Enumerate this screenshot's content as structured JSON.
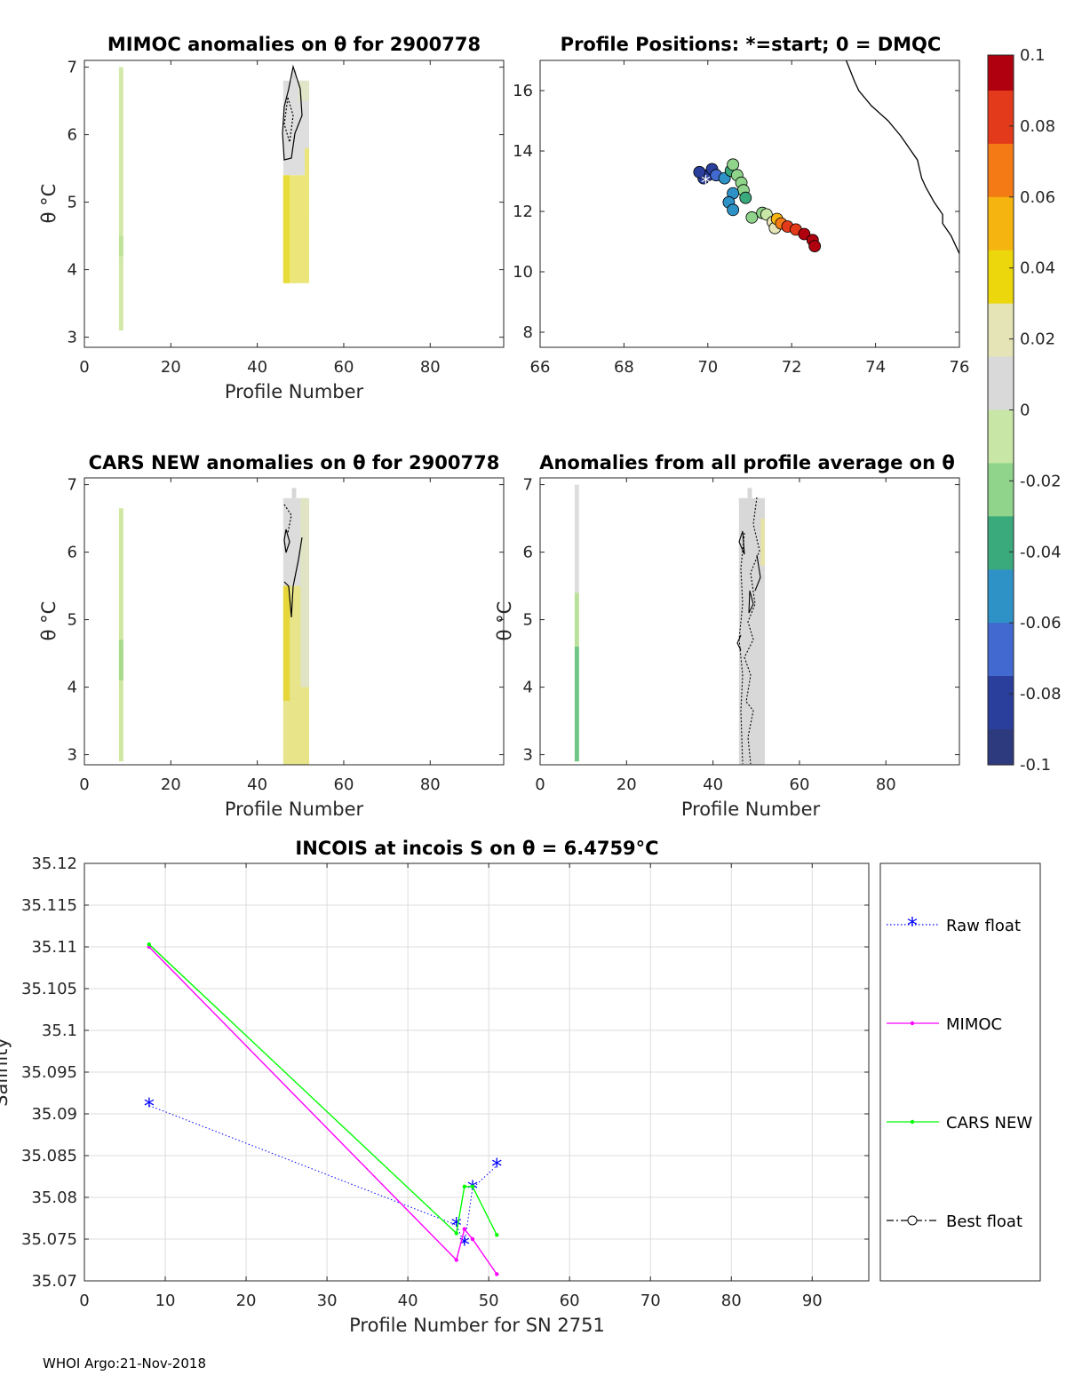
{
  "footer": "WHOI Argo:21-Nov-2018",
  "colorbar": {
    "ticks": [
      "0.1",
      "0.08",
      "0.06",
      "0.04",
      "0.02",
      "0",
      "-0.02",
      "-0.04",
      "-0.06",
      "-0.08",
      "-0.1"
    ],
    "stops": [
      "#b0000f",
      "#e23a1a",
      "#f47a16",
      "#f6b410",
      "#ecd70c",
      "#e4e4b6",
      "#d9d9d9",
      "#c8e6a6",
      "#8fd48a",
      "#3aa97c",
      "#2f92c6",
      "#4169d0",
      "#2a3e9c",
      "#2d3a7e"
    ]
  },
  "chart_data": [
    {
      "type": "heatmap",
      "title": "MIMOC anomalies on θ  for 2900778",
      "xlabel": "Profile Number",
      "ylabel": "θ °C",
      "xlim": [
        0,
        97
      ],
      "ylim": [
        2.85,
        7.1
      ],
      "xticks": [
        "0",
        "20",
        "40",
        "60",
        "80"
      ],
      "xtick_values": [
        0,
        20,
        40,
        60,
        80
      ],
      "yticks": [
        "3",
        "4",
        "5",
        "6",
        "7"
      ],
      "ytick_values": [
        3,
        4,
        5,
        6,
        7
      ],
      "cells": [
        {
          "x0": 8,
          "x1": 9,
          "y0": 3.1,
          "y1": 7.0,
          "color": "#d2e8a8"
        },
        {
          "x0": 8,
          "x1": 9,
          "y0": 4.2,
          "y1": 4.5,
          "color": "#bfe29a"
        },
        {
          "x0": 46,
          "x1": 52,
          "y0": 3.8,
          "y1": 5.4,
          "color": "#ece67a"
        },
        {
          "x0": 46,
          "x1": 47.5,
          "y0": 3.8,
          "y1": 5.4,
          "color": "#e8dc3a"
        },
        {
          "x0": 46,
          "x1": 52,
          "y0": 5.4,
          "y1": 6.8,
          "color": "#dedede"
        },
        {
          "x0": 49.5,
          "x1": 52,
          "y0": 6.5,
          "y1": 6.8,
          "color": "#e2e6c8"
        },
        {
          "x0": 48,
          "x1": 49,
          "y0": 6.8,
          "y1": 6.95,
          "color": "#d6d6d6"
        },
        {
          "x0": 51,
          "x1": 52,
          "y0": 4.8,
          "y1": 5.8,
          "color": "#ece67a"
        }
      ]
    },
    {
      "type": "scatter",
      "title": "Profile Positions: *=start; 0 = DMQC",
      "xlim": [
        66,
        76
      ],
      "ylim": [
        7.5,
        17
      ],
      "xticks": [
        "66",
        "68",
        "70",
        "72",
        "74",
        "76"
      ],
      "xtick_values": [
        66,
        68,
        70,
        72,
        74,
        76
      ],
      "yticks": [
        "8",
        "10",
        "12",
        "14",
        "16"
      ],
      "ytick_values": [
        8,
        10,
        12,
        14,
        16
      ],
      "coast_x": [
        73.3,
        73.5,
        73.6,
        73.9,
        74.3,
        74.6,
        74.7,
        75.0,
        75.1,
        75.2,
        75.4,
        75.6,
        75.6,
        75.8,
        76.0
      ],
      "coast_y": [
        17.0,
        16.3,
        16.0,
        15.5,
        15.0,
        14.5,
        14.3,
        13.7,
        13.1,
        12.8,
        12.3,
        11.9,
        11.6,
        11.2,
        10.6
      ],
      "start": [
        69.95,
        13.05
      ],
      "points": [
        {
          "x": 69.9,
          "y": 13.1,
          "v": -0.09
        },
        {
          "x": 70.0,
          "y": 13.2,
          "v": -0.09
        },
        {
          "x": 69.8,
          "y": 13.3,
          "v": -0.08
        },
        {
          "x": 70.1,
          "y": 13.4,
          "v": -0.08
        },
        {
          "x": 70.2,
          "y": 13.2,
          "v": -0.07
        },
        {
          "x": 70.4,
          "y": 13.1,
          "v": -0.06
        },
        {
          "x": 70.55,
          "y": 13.35,
          "v": -0.04
        },
        {
          "x": 70.6,
          "y": 13.55,
          "v": -0.03
        },
        {
          "x": 70.7,
          "y": 13.2,
          "v": -0.02
        },
        {
          "x": 70.8,
          "y": 12.95,
          "v": -0.02
        },
        {
          "x": 70.85,
          "y": 12.7,
          "v": -0.03
        },
        {
          "x": 70.6,
          "y": 12.6,
          "v": -0.05
        },
        {
          "x": 70.5,
          "y": 12.3,
          "v": -0.06
        },
        {
          "x": 70.6,
          "y": 12.05,
          "v": -0.06
        },
        {
          "x": 70.9,
          "y": 12.45,
          "v": -0.04
        },
        {
          "x": 71.05,
          "y": 11.8,
          "v": -0.03
        },
        {
          "x": 71.3,
          "y": 11.95,
          "v": -0.02
        },
        {
          "x": 71.4,
          "y": 11.9,
          "v": 0.0
        },
        {
          "x": 71.55,
          "y": 11.65,
          "v": 0.02
        },
        {
          "x": 71.6,
          "y": 11.45,
          "v": 0.03
        },
        {
          "x": 71.65,
          "y": 11.75,
          "v": 0.05
        },
        {
          "x": 71.75,
          "y": 11.6,
          "v": 0.07
        },
        {
          "x": 71.9,
          "y": 11.5,
          "v": 0.08
        },
        {
          "x": 72.1,
          "y": 11.4,
          "v": 0.09
        },
        {
          "x": 72.3,
          "y": 11.25,
          "v": 0.1
        },
        {
          "x": 72.5,
          "y": 11.05,
          "v": 0.1
        },
        {
          "x": 72.55,
          "y": 10.85,
          "v": 0.1
        }
      ]
    },
    {
      "type": "heatmap",
      "title": "CARS NEW anomalies on θ for 2900778",
      "xlabel": "Profile Number",
      "ylabel": "θ °C",
      "xlim": [
        0,
        97
      ],
      "ylim": [
        2.85,
        7.1
      ],
      "xticks": [
        "0",
        "20",
        "40",
        "60",
        "80"
      ],
      "xtick_values": [
        0,
        20,
        40,
        60,
        80
      ],
      "yticks": [
        "3",
        "4",
        "5",
        "6",
        "7"
      ],
      "ytick_values": [
        3,
        4,
        5,
        6,
        7
      ],
      "cells": [
        {
          "x0": 8,
          "x1": 9,
          "y0": 2.9,
          "y1": 6.65,
          "color": "#cfe7a2"
        },
        {
          "x0": 8,
          "x1": 9,
          "y0": 4.1,
          "y1": 4.7,
          "color": "#a6da8c"
        },
        {
          "x0": 46,
          "x1": 52,
          "y0": 2.85,
          "y1": 5.5,
          "color": "#e8e48a"
        },
        {
          "x0": 46,
          "x1": 47.5,
          "y0": 3.8,
          "y1": 5.5,
          "color": "#e6d63a"
        },
        {
          "x0": 46,
          "x1": 52,
          "y0": 5.5,
          "y1": 6.8,
          "color": "#dcdcdc"
        },
        {
          "x0": 50,
          "x1": 52,
          "y0": 4.0,
          "y1": 6.8,
          "color": "#e0e4c4"
        },
        {
          "x0": 48,
          "x1": 49,
          "y0": 6.8,
          "y1": 6.95,
          "color": "#d6d6d6"
        }
      ]
    },
    {
      "type": "heatmap",
      "title": "Anomalies from all profile average on θ",
      "xlabel": "Profile Number",
      "ylabel": "θ °C",
      "xlim": [
        0,
        97
      ],
      "ylim": [
        2.85,
        7.1
      ],
      "xticks": [
        "0",
        "20",
        "40",
        "60",
        "80"
      ],
      "xtick_values": [
        0,
        20,
        40,
        60,
        80
      ],
      "yticks": [
        "3",
        "4",
        "5",
        "6",
        "7"
      ],
      "ytick_values": [
        3,
        4,
        5,
        6,
        7
      ],
      "cells": [
        {
          "x0": 8,
          "x1": 9,
          "y0": 2.9,
          "y1": 5.4,
          "color": "#b9e09a"
        },
        {
          "x0": 8,
          "x1": 9,
          "y0": 2.9,
          "y1": 4.6,
          "color": "#6fc686"
        },
        {
          "x0": 8,
          "x1": 9,
          "y0": 5.4,
          "y1": 7.0,
          "color": "#dddddd"
        },
        {
          "x0": 46,
          "x1": 52,
          "y0": 2.85,
          "y1": 6.8,
          "color": "#d8d8d8"
        },
        {
          "x0": 51,
          "x1": 52,
          "y0": 5.8,
          "y1": 6.5,
          "color": "#e6e2a8"
        },
        {
          "x0": 48,
          "x1": 49,
          "y0": 6.8,
          "y1": 6.95,
          "color": "#d6d6d6"
        }
      ]
    },
    {
      "type": "line",
      "title": "INCOIS at incois S on θ = 6.4759°C",
      "xlabel": "Profile Number for SN 2751",
      "ylabel": "Salinity",
      "xlim": [
        0,
        97
      ],
      "ylim": [
        35.07,
        35.12
      ],
      "xticks": [
        "0",
        "10",
        "20",
        "30",
        "40",
        "50",
        "60",
        "70",
        "80",
        "90"
      ],
      "xtick_values": [
        0,
        10,
        20,
        30,
        40,
        50,
        60,
        70,
        80,
        90
      ],
      "yticks": [
        "35.07",
        "35.075",
        "35.08",
        "35.085",
        "35.09",
        "35.095",
        "35.1",
        "35.105",
        "35.11",
        "35.115",
        "35.12"
      ],
      "ytick_values": [
        35.07,
        35.075,
        35.08,
        35.085,
        35.09,
        35.095,
        35.1,
        35.105,
        35.11,
        35.115,
        35.12
      ],
      "grid": true,
      "series": [
        {
          "name": "Raw float",
          "color": "#0000ff",
          "x": [
            8,
            46,
            47,
            48,
            51
          ],
          "y": [
            35.091,
            35.0767,
            35.0744,
            35.0811,
            35.0838
          ]
        },
        {
          "name": "MIMOC",
          "color": "#ff00ff",
          "x": [
            8,
            46,
            47,
            48,
            51
          ],
          "y": [
            35.11,
            35.0725,
            35.0762,
            35.075,
            35.0708
          ]
        },
        {
          "name": "CARS NEW",
          "color": "#00ff00",
          "x": [
            8,
            46,
            47,
            48,
            51
          ],
          "y": [
            35.1103,
            35.0757,
            35.0813,
            35.0813,
            35.0755
          ]
        },
        {
          "name": "Best float",
          "color": "#000000",
          "x": [],
          "y": []
        }
      ]
    }
  ]
}
